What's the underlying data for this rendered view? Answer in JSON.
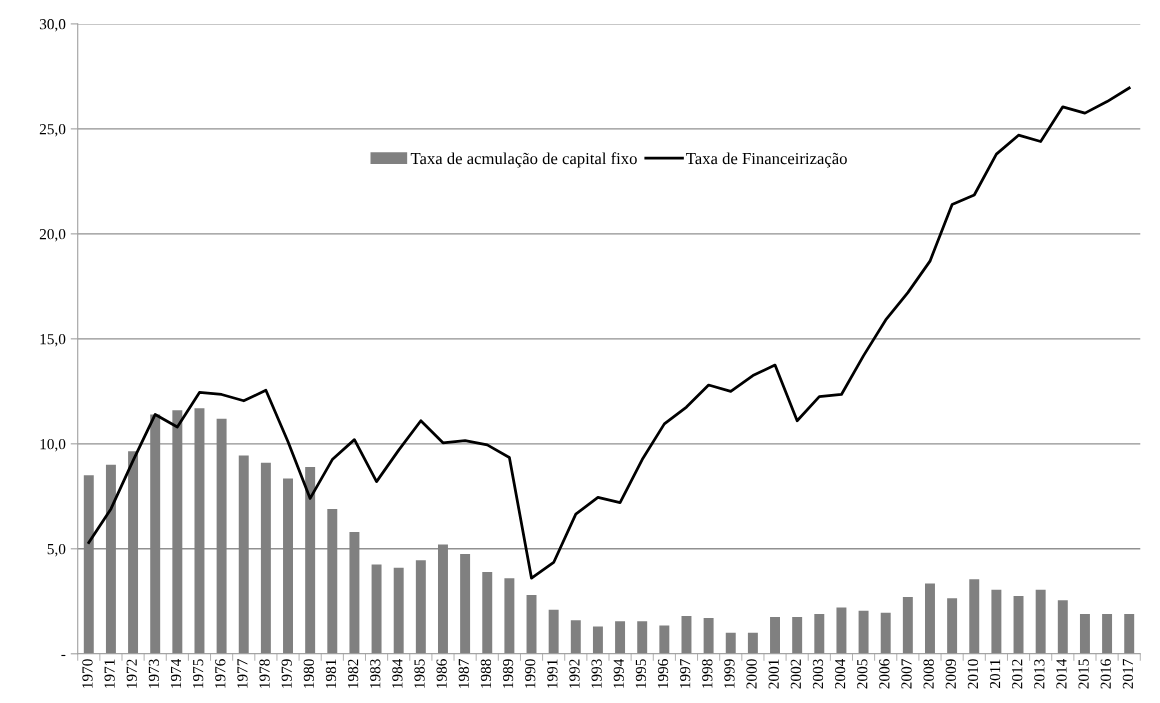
{
  "chart_data": {
    "type": "bar",
    "categories": [
      "1970",
      "1971",
      "1972",
      "1973",
      "1974",
      "1975",
      "1976",
      "1977",
      "1978",
      "1979",
      "1980",
      "1981",
      "1982",
      "1983",
      "1984",
      "1985",
      "1986",
      "1987",
      "1988",
      "1989",
      "1990",
      "1991",
      "1992",
      "1993",
      "1994",
      "1995",
      "1996",
      "1997",
      "1998",
      "1999",
      "2000",
      "2001",
      "2002",
      "2003",
      "2004",
      "2005",
      "2006",
      "2007",
      "2008",
      "2009",
      "2010",
      "2011",
      "2012",
      "2013",
      "2014",
      "2015",
      "2016",
      "2017"
    ],
    "series": [
      {
        "name": "Taxa de acmulação de capital fixo",
        "color": "#808080",
        "values": [
          8.5,
          9.0,
          9.65,
          11.4,
          11.6,
          11.7,
          11.2,
          9.45,
          9.1,
          8.35,
          8.9,
          6.9,
          5.8,
          4.25,
          4.1,
          4.45,
          5.2,
          4.75,
          3.9,
          3.6,
          2.8,
          2.1,
          1.6,
          1.3,
          1.55,
          1.55,
          1.35,
          1.8,
          1.7,
          1.0,
          1.0,
          1.75,
          1.75,
          1.9,
          2.2,
          2.05,
          1.95,
          2.7,
          3.35,
          2.65,
          3.55,
          3.05,
          2.75,
          3.05,
          2.55,
          1.9,
          1.9,
          1.9
        ]
      },
      {
        "name": "Taxa de Financeirização",
        "type": "line",
        "color": "#000000",
        "values": [
          5.3,
          6.9,
          9.2,
          11.4,
          10.8,
          12.45,
          12.35,
          12.05,
          12.55,
          10.1,
          7.4,
          9.25,
          10.2,
          8.2,
          9.7,
          11.1,
          10.05,
          10.15,
          9.95,
          9.35,
          3.6,
          4.35,
          6.65,
          7.45,
          7.2,
          9.25,
          10.95,
          11.75,
          12.8,
          12.5,
          13.25,
          13.75,
          11.1,
          12.25,
          12.35,
          14.2,
          15.9,
          17.2,
          18.7,
          21.4,
          21.85,
          23.8,
          24.7,
          24.4,
          26.05,
          25.75,
          26.3,
          26.95
        ]
      }
    ],
    "ylim": [
      0,
      30
    ],
    "yticks": [
      {
        "value": 0,
        "label": "-"
      },
      {
        "value": 5,
        "label": "5,0"
      },
      {
        "value": 10,
        "label": "10,0"
      },
      {
        "value": 15,
        "label": "15,0"
      },
      {
        "value": 20,
        "label": "20,0"
      },
      {
        "value": 25,
        "label": "25,0"
      },
      {
        "value": 30,
        "label": "30,0"
      }
    ],
    "grid": "y",
    "legend": "top"
  }
}
